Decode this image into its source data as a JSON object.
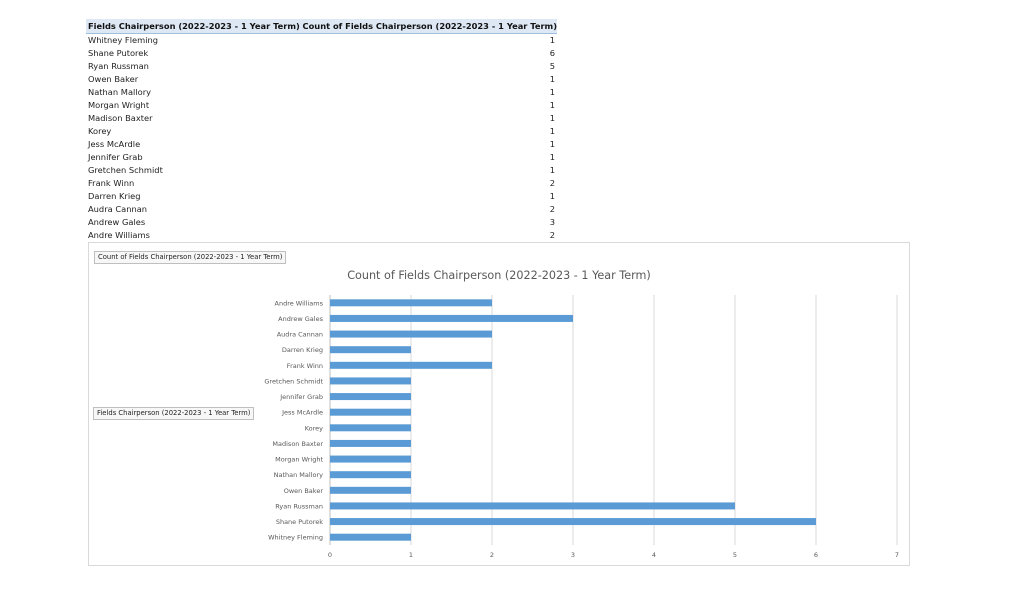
{
  "pivot": {
    "header_row_label": "Fields Chairperson (2022-2023 - 1 Year Term)",
    "header_value_label": "Count of Fields Chairperson (2022-2023 - 1 Year Term)",
    "rows": [
      {
        "name": "Whitney Fleming",
        "count": "1"
      },
      {
        "name": "Shane Putorek",
        "count": "6"
      },
      {
        "name": "Ryan Russman",
        "count": "5"
      },
      {
        "name": "Owen Baker",
        "count": "1"
      },
      {
        "name": "Nathan Mallory",
        "count": "1"
      },
      {
        "name": "Morgan Wright",
        "count": "1"
      },
      {
        "name": "Madison Baxter",
        "count": "1"
      },
      {
        "name": "Korey",
        "count": "1"
      },
      {
        "name": "Jess McArdle",
        "count": "1"
      },
      {
        "name": "Jennifer Grab",
        "count": "1"
      },
      {
        "name": "Gretchen Schmidt",
        "count": "1"
      },
      {
        "name": "Frank Winn",
        "count": "2"
      },
      {
        "name": "Darren Krieg",
        "count": "1"
      },
      {
        "name": "Audra Cannan",
        "count": "2"
      },
      {
        "name": "Andrew Gales",
        "count": "3"
      },
      {
        "name": "Andre Williams",
        "count": "2"
      }
    ]
  },
  "chart_buttons": {
    "value_field": "Count of Fields Chairperson (2022-2023 - 1 Year Term)",
    "axis_field": "Fields Chairperson (2022-2023 - 1 Year Term)"
  },
  "colors": {
    "bar": "#5b9bd5",
    "gridline": "#d9d9d9",
    "header_bg": "#dde8f4"
  },
  "chart_data": {
    "type": "bar",
    "orientation": "horizontal",
    "title": "Count of Fields Chairperson (2022-2023 - 1 Year Term)",
    "categories": [
      "Andre Williams",
      "Andrew Gales",
      "Audra Cannan",
      "Darren Krieg",
      "Frank Winn",
      "Gretchen Schmidt",
      "Jennifer Grab",
      "Jess McArdle",
      "Korey",
      "Madison Baxter",
      "Morgan Wright",
      "Nathan Mallory",
      "Owen Baker",
      "Ryan Russman",
      "Shane Putorek",
      "Whitney Fleming"
    ],
    "values": [
      2,
      3,
      2,
      1,
      2,
      1,
      1,
      1,
      1,
      1,
      1,
      1,
      1,
      5,
      6,
      1
    ],
    "xlim": [
      0,
      7
    ],
    "x_ticks": [
      "0",
      "1",
      "2",
      "3",
      "4",
      "5",
      "6",
      "7"
    ],
    "grid": true,
    "legend": "none"
  }
}
